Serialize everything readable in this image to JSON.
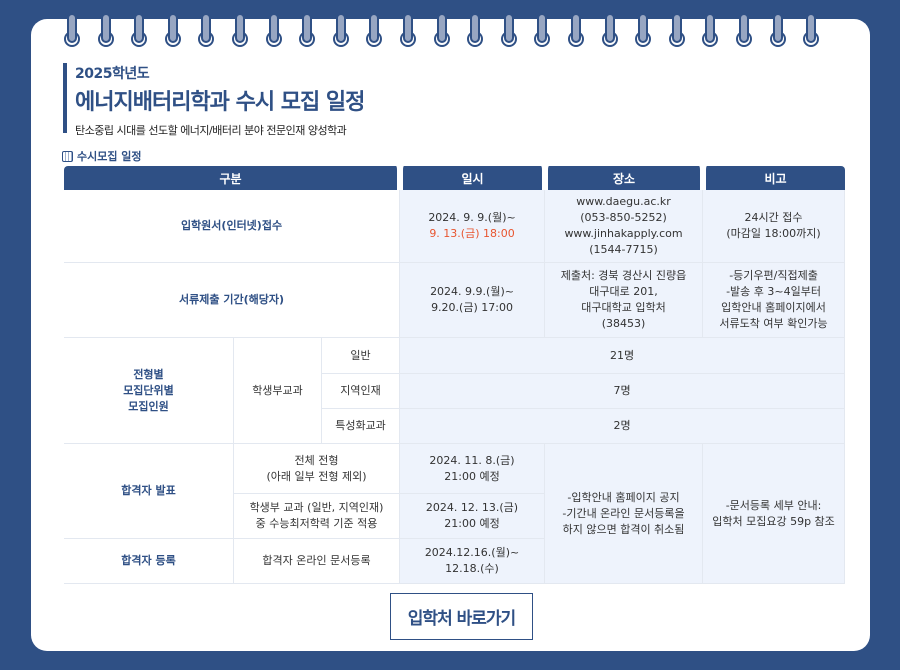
{
  "header": {
    "year": "2025학년도",
    "title": "에너지배터리학과 수시 모집 일정",
    "description": "탄소중립 시대를 선도할 에너지/배터리 분야 전문인재 양성학과"
  },
  "section": {
    "title": "수시모집 일정",
    "icon": "calendar-icon"
  },
  "table": {
    "headers": [
      "구분",
      "일시",
      "장소",
      "비고"
    ],
    "apply": {
      "label": "입학원서(인터넷)접수",
      "date1": "2024. 9. 9.(월)~",
      "date2": "9. 13.(금) 18:00",
      "place": [
        "www.daegu.ac.kr",
        "(053-850-5252)",
        "www.jinhakapply.com",
        "(1544-7715)"
      ],
      "note": [
        "24시간 접수",
        "(마감일 18:00까지)"
      ]
    },
    "docs": {
      "label": "서류제출 기간(해당자)",
      "date": [
        "2024. 9.9.(월)~",
        "9.20.(금) 17:00"
      ],
      "place": [
        "제출처: 경북 경산시 진량읍",
        "대구대로 201,",
        "대구대학교 입학처",
        "(38453)"
      ],
      "note": [
        "-등기우편/직접제출",
        "-발송 후 3~4일부터",
        "입학안내 홈페이지에서",
        "서류도착 여부 확인가능"
      ]
    },
    "quota": {
      "label": [
        "전형별",
        "모집단위별",
        "모집인원"
      ],
      "type": "학생부교과",
      "rows": [
        {
          "name": "일반",
          "count": "21명"
        },
        {
          "name": "지역인재",
          "count": "7명"
        },
        {
          "name": "특성화교과",
          "count": "2명"
        }
      ]
    },
    "result": {
      "label": "합격자 발표",
      "rows": [
        {
          "name": [
            "전체 전형",
            "(아래 일부 전형 제외)"
          ],
          "date": [
            "2024. 11. 8.(금)",
            "21:00 예정"
          ]
        },
        {
          "name": [
            "학생부 교과 (일반, 지역인재)",
            "중 수능최저학력 기준 적용"
          ],
          "date": [
            "2024. 12. 13.(금)",
            "21:00 예정"
          ]
        }
      ],
      "place": [
        "-입학안내 홈페이지 공지",
        "-기간내 온라인 문서등록을",
        "하지 않으면 합격이 취소됨"
      ],
      "note": [
        "-문서등록 세부 안내:",
        "입학처 모집요강 59p 참조"
      ]
    },
    "register": {
      "label": "합격자 등록",
      "name": "합격자 온라인 문서등록",
      "date": [
        "2024.12.16.(월)~",
        "12.18.(수)"
      ]
    }
  },
  "button": {
    "label": "입학처 바로가기"
  },
  "colors": {
    "primary": "#2f5085",
    "highlight": "#e8552f",
    "cell_bg": "#eef3fc"
  }
}
